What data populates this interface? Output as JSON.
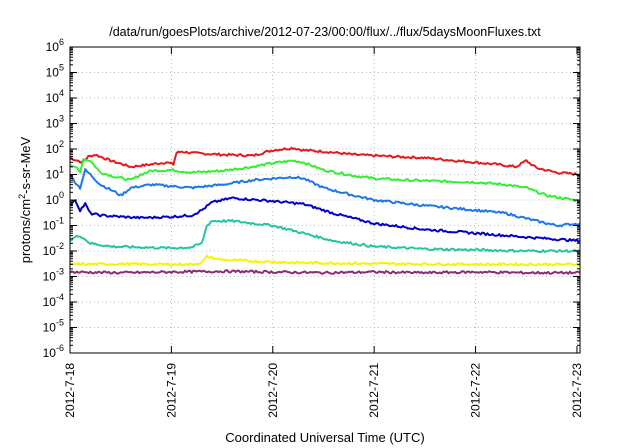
{
  "chart_data": {
    "type": "line",
    "title": "/data/run/goesPlots/archive/2012-07-23/00:00/flux/../flux/5daysMoonFluxes.txt",
    "xlabel": "Coordinated Universal Time (UTC)",
    "ylabel_main": "protons/cm",
    "ylabel_sup": "2",
    "ylabel_rest": "-s-sr-MeV",
    "y_scale": "log",
    "ylim_exponents": [
      -6,
      6
    ],
    "y_tick_base": "10",
    "y_tick_exponents": [
      "6",
      "5",
      "4",
      "3",
      "2",
      "1",
      "0",
      "-1",
      "-2",
      "-3",
      "-4",
      "-5",
      "-6"
    ],
    "x_unit": "days",
    "xlim": [
      0,
      5.03
    ],
    "x_ticks": [
      {
        "value": 0,
        "label": "2012-7-18"
      },
      {
        "value": 1,
        "label": "2012-7-19"
      },
      {
        "value": 2,
        "label": "2012-7-20"
      },
      {
        "value": 3,
        "label": "2012-7-21"
      },
      {
        "value": 4,
        "label": "2012-7-22"
      },
      {
        "value": 5,
        "label": "2012-7-23"
      }
    ],
    "grid": true,
    "legend": "none",
    "series": [
      {
        "color": "#e41a1c",
        "x": [
          0,
          0.12,
          0.18,
          0.25,
          0.4,
          0.6,
          0.8,
          0.95,
          1.02,
          1.05,
          1.1,
          1.2,
          1.5,
          1.8,
          2.0,
          2.2,
          2.3,
          2.5,
          2.8,
          3.0,
          3.2,
          3.5,
          3.8,
          4.0,
          4.2,
          4.4,
          4.5,
          4.6,
          4.8,
          5.03
        ],
        "y": [
          45,
          30,
          50,
          60,
          35,
          20,
          25,
          30,
          25,
          70,
          80,
          70,
          60,
          55,
          90,
          110,
          90,
          80,
          60,
          55,
          50,
          45,
          35,
          30,
          25,
          20,
          35,
          18,
          12,
          10
        ]
      },
      {
        "color": "#33ee33",
        "x": [
          0,
          0.05,
          0.1,
          0.13,
          0.2,
          0.3,
          0.45,
          0.6,
          0.7,
          0.8,
          1.0,
          1.2,
          1.5,
          1.8,
          2.0,
          2.2,
          2.3,
          2.5,
          2.8,
          3.0,
          3.3,
          3.6,
          4.0,
          4.3,
          4.5,
          4.7,
          4.85,
          5.03
        ],
        "y": [
          25,
          20,
          12,
          40,
          35,
          12,
          8,
          6,
          10,
          14,
          15,
          12,
          14,
          20,
          28,
          35,
          30,
          15,
          9,
          7,
          6,
          5.5,
          5,
          4,
          3,
          1.5,
          1.2,
          0.9
        ]
      },
      {
        "color": "#1e78e6",
        "x": [
          0,
          0.05,
          0.1,
          0.15,
          0.2,
          0.3,
          0.45,
          0.5,
          0.6,
          0.8,
          1.0,
          1.2,
          1.5,
          1.8,
          2.0,
          2.2,
          2.3,
          2.5,
          2.8,
          3.0,
          3.5,
          4.0,
          4.3,
          4.6,
          4.8,
          5.03
        ],
        "y": [
          10,
          5,
          3,
          15,
          10,
          4,
          2,
          1.5,
          3,
          4,
          3.5,
          3,
          4,
          6,
          7,
          8,
          7,
          3,
          1.5,
          1,
          0.6,
          0.4,
          0.3,
          0.15,
          0.1,
          0.12
        ]
      },
      {
        "color": "#0000cc",
        "x": [
          0,
          0.05,
          0.1,
          0.15,
          0.2,
          0.3,
          0.5,
          0.7,
          1.0,
          1.2,
          1.3,
          1.4,
          1.6,
          2.0,
          2.3,
          2.6,
          3.0,
          3.5,
          4.0,
          4.5,
          5.03
        ],
        "y": [
          0.6,
          1.0,
          0.4,
          0.7,
          0.3,
          0.25,
          0.22,
          0.2,
          0.22,
          0.25,
          0.4,
          0.8,
          1.2,
          0.9,
          0.7,
          0.3,
          0.12,
          0.07,
          0.05,
          0.035,
          0.025
        ]
      },
      {
        "color": "#22c7a0",
        "x": [
          0,
          0.05,
          0.1,
          0.2,
          0.4,
          0.7,
          1.0,
          1.2,
          1.3,
          1.35,
          1.4,
          1.6,
          2.0,
          2.3,
          2.6,
          3.0,
          3.5,
          4.0,
          4.5,
          5.03
        ],
        "y": [
          0.025,
          0.035,
          0.04,
          0.02,
          0.015,
          0.014,
          0.013,
          0.014,
          0.02,
          0.1,
          0.15,
          0.15,
          0.1,
          0.05,
          0.025,
          0.015,
          0.012,
          0.011,
          0.01,
          0.01
        ]
      },
      {
        "color": "#f5f500",
        "x": [
          0,
          0.5,
          1.0,
          1.2,
          1.3,
          1.35,
          1.5,
          1.8,
          2.2,
          3.0,
          4.0,
          5.03
        ],
        "y": [
          0.003,
          0.0031,
          0.003,
          0.003,
          0.0035,
          0.006,
          0.0045,
          0.004,
          0.0035,
          0.0032,
          0.003,
          0.003
        ]
      },
      {
        "color": "#8e2b72",
        "x": [
          0,
          0.5,
          1.0,
          1.5,
          2.0,
          2.5,
          3.0,
          3.5,
          4.0,
          4.5,
          5.03
        ],
        "y": [
          0.0015,
          0.0014,
          0.0015,
          0.0016,
          0.0015,
          0.0014,
          0.0015,
          0.0014,
          0.0015,
          0.0014,
          0.0014
        ]
      }
    ]
  }
}
